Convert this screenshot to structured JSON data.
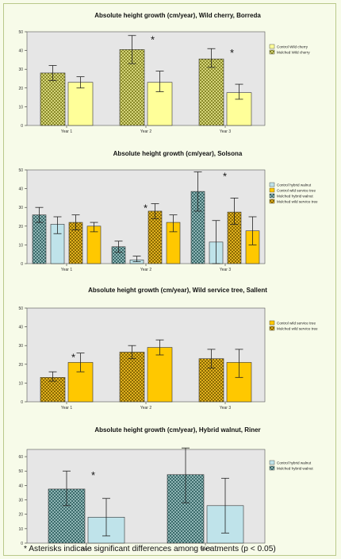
{
  "colors": {
    "page_bg": "#f7fbe9",
    "plot_bg": "#e6e6e6",
    "frame": "#b9c98a",
    "control_wild_cherry": "#ffff99",
    "mulched_wild_cherry": "#8a8a2a",
    "control_walnut": "#bfe3ea",
    "mulched_walnut": "#3b6b6b",
    "control_service": "#ffc800",
    "mulched_service": "#8a6a00"
  },
  "footnote": "* Asterisks indicate significant differences among treatments (p < 0.05)",
  "chart_data": [
    {
      "type": "bar",
      "title": "Absolute height growth (cm/year), Wild cherry, Borreda",
      "categories": [
        "Year 1",
        "Year 2",
        "Year 3"
      ],
      "ylim": [
        0,
        50
      ],
      "yticks": [
        0,
        10,
        20,
        30,
        40,
        50
      ],
      "grid": false,
      "legend_position": "right",
      "series": [
        {
          "name": "Control Wild cherry",
          "values": [
            23,
            23,
            17.5
          ],
          "errors": [
            [
              20,
              26
            ],
            [
              18,
              29
            ],
            [
              14,
              22
            ]
          ],
          "color": "#ffff99",
          "pattern": false
        },
        {
          "name": "Mulched Wild cherry",
          "values": [
            28,
            40.5,
            35.5
          ],
          "errors": [
            [
              24,
              32
            ],
            [
              33,
              48
            ],
            [
              31,
              41
            ]
          ],
          "color": "#8a8a2a",
          "pattern": true
        }
      ],
      "bar_order": [
        1,
        0
      ],
      "asterisks": [
        {
          "category": "Year 2",
          "text": "*"
        },
        {
          "category": "Year 3",
          "text": "*"
        }
      ]
    },
    {
      "type": "bar",
      "title": "Absolute height growth (cm/year), Solsona",
      "categories": [
        "Year 1",
        "Year 2",
        "Year 3"
      ],
      "ylim": [
        0,
        50
      ],
      "yticks": [
        0,
        10,
        20,
        30,
        40,
        50
      ],
      "grid": false,
      "legend_position": "right",
      "series": [
        {
          "name": "Control hybrid walnut",
          "values": [
            21,
            2,
            11.5
          ],
          "errors": [
            [
              16,
              25
            ],
            [
              1,
              4
            ],
            [
              0,
              23
            ]
          ],
          "color": "#bfe3ea",
          "pattern": false
        },
        {
          "name": "Control wild service tree",
          "values": [
            20,
            22,
            17.5
          ],
          "errors": [
            [
              17,
              22
            ],
            [
              17,
              26
            ],
            [
              10,
              25
            ]
          ],
          "color": "#ffc800",
          "pattern": false
        },
        {
          "name": "Mulched hybrid walnut",
          "values": [
            26,
            9,
            38.5
          ],
          "errors": [
            [
              22,
              30
            ],
            [
              6,
              12
            ],
            [
              28,
              49
            ]
          ],
          "color": "#3b6b6b",
          "pattern": true
        },
        {
          "name": "Mulched wild service tree",
          "values": [
            22,
            28,
            27.5
          ],
          "errors": [
            [
              18,
              26
            ],
            [
              24,
              32
            ],
            [
              21,
              35
            ]
          ],
          "color": "#8a6a00",
          "pattern": true
        }
      ],
      "bar_order": [
        2,
        0,
        3,
        1
      ],
      "asterisks": [
        {
          "category": "Year 2",
          "text": "*"
        },
        {
          "category": "Year 3",
          "text": "*"
        }
      ]
    },
    {
      "type": "bar",
      "title": "Absolute height growth (cm/year), Wild service tree, Sallent",
      "categories": [
        "Year 1",
        "Year 2",
        "Year 3"
      ],
      "ylim": [
        0,
        50
      ],
      "yticks": [
        0,
        10,
        20,
        30,
        40,
        50
      ],
      "grid": false,
      "legend_position": "right",
      "series": [
        {
          "name": "Control wild service tree",
          "values": [
            21,
            29,
            21
          ],
          "errors": [
            [
              16,
              26
            ],
            [
              25,
              33
            ],
            [
              13,
              28
            ]
          ],
          "color": "#ffc800",
          "pattern": false
        },
        {
          "name": "Mulched wild service tree",
          "values": [
            13,
            26.5,
            23
          ],
          "errors": [
            [
              11,
              16
            ],
            [
              23,
              30
            ],
            [
              18,
              28
            ]
          ],
          "color": "#8a6a00",
          "pattern": true
        }
      ],
      "bar_order": [
        1,
        0
      ],
      "asterisks": [
        {
          "category": "Year 1",
          "text": "*"
        }
      ]
    },
    {
      "type": "bar",
      "title": "Absolute height growth (cm/year), Hybrid walnut, Riner",
      "categories": [
        "Year 1",
        "Year 2"
      ],
      "ylim": [
        0,
        65
      ],
      "yticks": [
        0,
        10,
        20,
        30,
        40,
        50,
        60
      ],
      "grid": false,
      "legend_position": "right",
      "series": [
        {
          "name": "Control hybrid walnut",
          "values": [
            18,
            26
          ],
          "errors": [
            [
              5,
              31
            ],
            [
              7,
              45
            ]
          ],
          "color": "#bfe3ea",
          "pattern": false
        },
        {
          "name": "Mulched hybrid walnut",
          "values": [
            37.5,
            47.5
          ],
          "errors": [
            [
              26,
              50
            ],
            [
              28,
              66
            ]
          ],
          "color": "#3b6b6b",
          "pattern": true
        }
      ],
      "bar_order": [
        1,
        0
      ],
      "asterisks": [
        {
          "category": "Year 1",
          "text": "*"
        }
      ]
    }
  ]
}
